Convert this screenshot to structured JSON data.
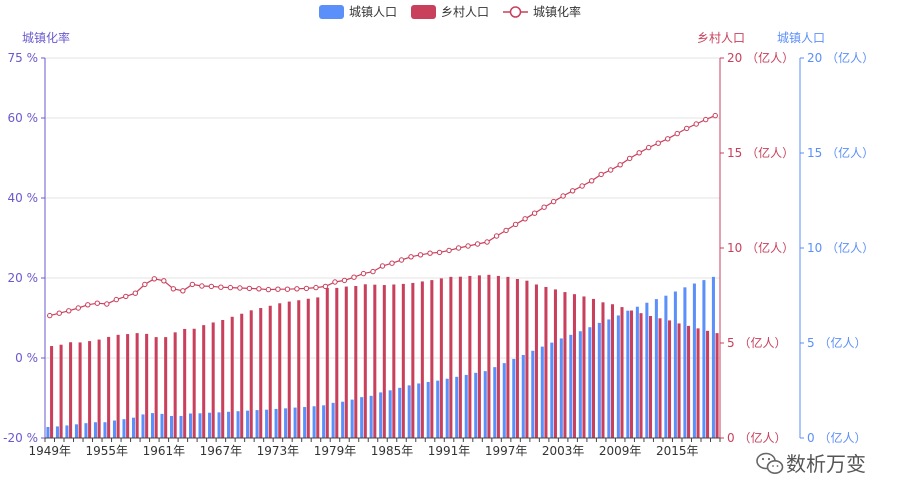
{
  "colors": {
    "urban": "#5B8FF9",
    "rural": "#C9405C",
    "rate_axis": "#6A5ACD",
    "grid": "#e3e3e3",
    "axis": "#444444"
  },
  "watermark": {
    "icon": "wechat-icon",
    "text": "数析万变"
  },
  "chart_data": {
    "type": "bar",
    "legend": {
      "position": "top-center",
      "items": [
        {
          "name": "城镇人口",
          "kind": "bar",
          "color": "#5B8FF9"
        },
        {
          "name": "乡村人口",
          "kind": "bar",
          "color": "#C9405C"
        },
        {
          "name": "城镇化率",
          "kind": "line",
          "color": "#C9405C"
        }
      ]
    },
    "xaxis": {
      "years": [
        1949,
        1950,
        1951,
        1952,
        1953,
        1954,
        1955,
        1956,
        1957,
        1958,
        1959,
        1960,
        1961,
        1962,
        1963,
        1964,
        1965,
        1966,
        1967,
        1968,
        1969,
        1970,
        1971,
        1972,
        1973,
        1974,
        1975,
        1976,
        1977,
        1978,
        1979,
        1980,
        1981,
        1982,
        1983,
        1984,
        1985,
        1986,
        1987,
        1988,
        1989,
        1990,
        1991,
        1992,
        1993,
        1994,
        1995,
        1996,
        1997,
        1998,
        1999,
        2000,
        2001,
        2002,
        2003,
        2004,
        2005,
        2006,
        2007,
        2008,
        2009,
        2010,
        2011,
        2012,
        2013,
        2014,
        2015,
        2016,
        2017,
        2018,
        2019
      ],
      "tick_labels": [
        "1949年",
        "1955年",
        "1961年",
        "1967年",
        "1973年",
        "1979年",
        "1985年",
        "1991年",
        "1997年",
        "2003年",
        "2009年",
        "2015年"
      ]
    },
    "axes": {
      "rate": {
        "name": "城镇化率",
        "min": -20,
        "max": 75,
        "ticks": [
          "75 %",
          "60 %",
          "40 %",
          "20 %",
          "0 %",
          "-20 %"
        ],
        "tick_values": [
          75,
          60,
          40,
          20,
          0,
          -20
        ]
      },
      "rural": {
        "name": "乡村人口",
        "min": 0,
        "max": 20,
        "ticks": [
          "20 （亿人）",
          "15 （亿人）",
          "10 （亿人）",
          "5 （亿人）",
          "0 （亿人）"
        ],
        "tick_values": [
          20,
          15,
          10,
          5,
          0
        ]
      },
      "urban": {
        "name": "城镇人口",
        "min": 0,
        "max": 20,
        "ticks": [
          "20 （亿人）",
          "15 （亿人）",
          "10 （亿人）",
          "5 （亿人）",
          "0 （亿人）"
        ],
        "tick_values": [
          20,
          15,
          10,
          5,
          0
        ]
      }
    },
    "series": [
      {
        "name": "城镇人口",
        "type": "bar",
        "axis": "urban",
        "values": [
          0.58,
          0.61,
          0.66,
          0.72,
          0.78,
          0.83,
          0.83,
          0.92,
          0.99,
          1.07,
          1.24,
          1.31,
          1.27,
          1.16,
          1.16,
          1.29,
          1.3,
          1.33,
          1.35,
          1.38,
          1.41,
          1.44,
          1.47,
          1.49,
          1.53,
          1.56,
          1.6,
          1.63,
          1.67,
          1.72,
          1.85,
          1.91,
          2.02,
          2.15,
          2.22,
          2.4,
          2.51,
          2.64,
          2.77,
          2.87,
          2.95,
          3.02,
          3.12,
          3.22,
          3.32,
          3.43,
          3.52,
          3.73,
          3.94,
          4.16,
          4.37,
          4.59,
          4.81,
          5.02,
          5.24,
          5.43,
          5.62,
          5.83,
          6.06,
          6.24,
          6.45,
          6.7,
          6.91,
          7.12,
          7.31,
          7.49,
          7.71,
          7.93,
          8.13,
          8.31,
          8.48
        ]
      },
      {
        "name": "乡村人口",
        "type": "bar",
        "axis": "rural",
        "values": [
          4.84,
          4.91,
          5.04,
          5.03,
          5.1,
          5.18,
          5.32,
          5.43,
          5.47,
          5.52,
          5.48,
          5.31,
          5.31,
          5.56,
          5.74,
          5.75,
          5.94,
          6.08,
          6.21,
          6.38,
          6.54,
          6.72,
          6.84,
          6.96,
          7.09,
          7.18,
          7.25,
          7.33,
          7.4,
          7.9,
          7.9,
          7.97,
          8.0,
          8.09,
          8.07,
          8.05,
          8.08,
          8.11,
          8.16,
          8.24,
          8.31,
          8.4,
          8.48,
          8.49,
          8.53,
          8.56,
          8.59,
          8.53,
          8.48,
          8.37,
          8.28,
          8.08,
          7.95,
          7.82,
          7.68,
          7.57,
          7.45,
          7.32,
          7.14,
          7.04,
          6.89,
          6.71,
          6.57,
          6.42,
          6.3,
          6.19,
          6.03,
          5.9,
          5.77,
          5.64,
          5.52
        ]
      },
      {
        "name": "城镇化率",
        "type": "line",
        "axis": "rate",
        "values": [
          10.6,
          11.2,
          11.8,
          12.5,
          13.3,
          13.7,
          13.5,
          14.6,
          15.4,
          16.2,
          18.4,
          19.8,
          19.3,
          17.3,
          16.8,
          18.4,
          18.0,
          17.9,
          17.7,
          17.6,
          17.5,
          17.4,
          17.3,
          17.1,
          17.2,
          17.2,
          17.3,
          17.4,
          17.6,
          17.9,
          19.0,
          19.4,
          20.2,
          21.1,
          21.6,
          23.0,
          23.7,
          24.5,
          25.3,
          25.8,
          26.2,
          26.4,
          26.9,
          27.5,
          28.0,
          28.5,
          29.0,
          30.5,
          31.9,
          33.4,
          34.8,
          36.2,
          37.7,
          39.1,
          40.5,
          41.8,
          43.0,
          44.3,
          45.9,
          47.0,
          48.3,
          49.9,
          51.3,
          52.6,
          53.7,
          54.8,
          56.1,
          57.4,
          58.5,
          59.6,
          60.6
        ]
      }
    ]
  }
}
